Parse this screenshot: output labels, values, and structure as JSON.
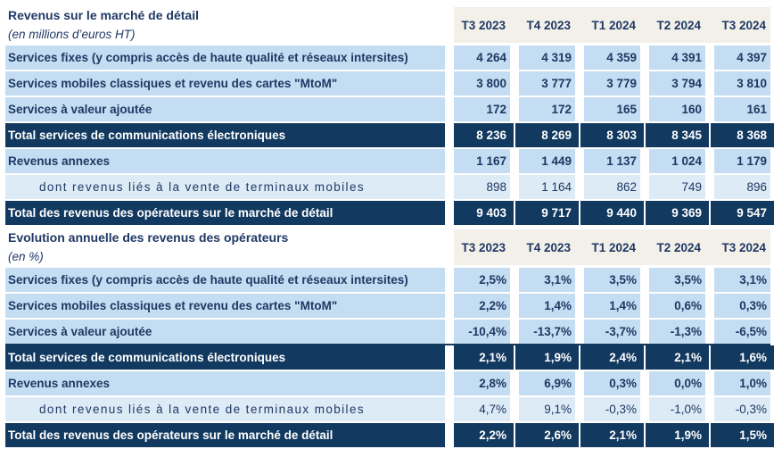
{
  "colors": {
    "navy": "#12395f",
    "row_blue": "#c4ddf2",
    "row_blue_light": "#ddebf7",
    "header_beige": "#f2f0e9",
    "text_navy": "#1f3864"
  },
  "table1": {
    "title": "Revenus sur le marché de détail",
    "subtitle": "(en millions d’euros HT)",
    "columns": [
      "T3 2023",
      "T4 2023",
      "T1 2024",
      "T2 2024",
      "T3 2024"
    ],
    "rows": [
      {
        "label": "Services fixes (y compris accès de haute qualité et réseaux intersites)",
        "values": [
          "4 264",
          "4 319",
          "4 359",
          "4 391",
          "4 397"
        ],
        "style": "blue"
      },
      {
        "label": "Services mobiles classiques et revenu des cartes \"MtoM\"",
        "values": [
          "3 800",
          "3 777",
          "3 779",
          "3 794",
          "3 810"
        ],
        "style": "blue"
      },
      {
        "label": "Services à valeur ajoutée",
        "values": [
          "172",
          "172",
          "165",
          "160",
          "161"
        ],
        "style": "blue"
      },
      {
        "label": "Total services de communications électroniques",
        "values": [
          "8 236",
          "8 269",
          "8 303",
          "8 345",
          "8 368"
        ],
        "style": "total"
      },
      {
        "label": "Revenus annexes",
        "values": [
          "1 167",
          "1 449",
          "1 137",
          "1 024",
          "1 179"
        ],
        "style": "blue"
      },
      {
        "label": "dont revenus liés à la vente de terminaux mobiles",
        "values": [
          "898",
          "1 164",
          "862",
          "749",
          "896"
        ],
        "style": "sub"
      },
      {
        "label": "Total des revenus des opérateurs sur le marché de détail",
        "values": [
          "9 403",
          "9 717",
          "9 440",
          "9 369",
          "9 547"
        ],
        "style": "total"
      }
    ]
  },
  "table2": {
    "title": "Evolution annuelle des revenus des opérateurs",
    "subtitle": "(en %)",
    "columns": [
      "T3 2023",
      "T4 2023",
      "T1 2024",
      "T2 2024",
      "T3 2024"
    ],
    "rows": [
      {
        "label": "Services fixes (y compris accès de haute qualité et réseaux intersites)",
        "values": [
          "2,5%",
          "3,1%",
          "3,5%",
          "3,5%",
          "3,1%"
        ],
        "style": "blue"
      },
      {
        "label": "Services mobiles classiques et revenu des cartes \"MtoM\"",
        "values": [
          "2,2%",
          "1,4%",
          "1,4%",
          "0,6%",
          "0,3%"
        ],
        "style": "blue"
      },
      {
        "label": "Services à valeur ajoutée",
        "values": [
          "-10,4%",
          "-13,7%",
          "-3,7%",
          "-1,3%",
          "-6,5%"
        ],
        "style": "blue",
        "underline": true
      },
      {
        "label": "Total services de communications électroniques",
        "values": [
          "2,1%",
          "1,9%",
          "2,4%",
          "2,1%",
          "1,6%"
        ],
        "style": "total"
      },
      {
        "label": "Revenus annexes",
        "values": [
          "2,8%",
          "6,9%",
          "0,3%",
          "0,0%",
          "1,0%"
        ],
        "style": "blue"
      },
      {
        "label": "dont revenus liés à la vente de terminaux mobiles",
        "values": [
          "4,7%",
          "9,1%",
          "-0,3%",
          "-1,0%",
          "-0,3%"
        ],
        "style": "sub"
      },
      {
        "label": "Total des revenus des opérateurs sur le marché de détail",
        "values": [
          "2,2%",
          "2,6%",
          "2,1%",
          "1,9%",
          "1,5%"
        ],
        "style": "total"
      }
    ]
  }
}
